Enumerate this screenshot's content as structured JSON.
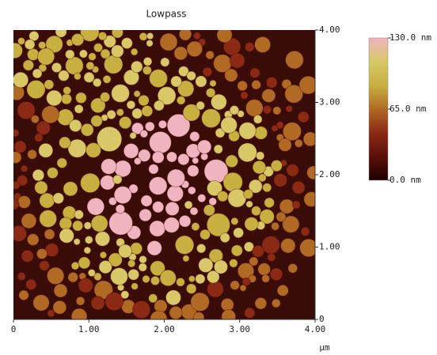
{
  "chart_data": {
    "type": "image",
    "title": "Lowpass",
    "x_label": "µm",
    "xlim": [
      0,
      4
    ],
    "xticks": [
      0,
      {
        "value": 1,
        "label": "1.00"
      },
      {
        "value": 2,
        "label": "2.00"
      },
      {
        "value": 3,
        "label": "3.00"
      },
      {
        "value": 4,
        "label": "4.00"
      }
    ],
    "ylim": [
      0,
      4
    ],
    "yticks": [
      0,
      {
        "value": 1,
        "label": "1.00"
      },
      {
        "value": 2,
        "label": "2.00"
      },
      {
        "value": 3,
        "label": "3.00"
      },
      {
        "value": 4,
        "label": "4.00"
      }
    ],
    "colorbar": {
      "clim": [
        0,
        130
      ],
      "ticks": [
        {
          "value": 0,
          "label": "0.0 nm"
        },
        {
          "value": 65,
          "label": "65.0 nm"
        },
        {
          "value": 130,
          "label": "130.0 nm"
        }
      ],
      "colormap": [
        "#200000",
        "#5a1008",
        "#8a2a14",
        "#b06a24",
        "#c8b040",
        "#d8c868",
        "#f0b4c0"
      ]
    }
  }
}
